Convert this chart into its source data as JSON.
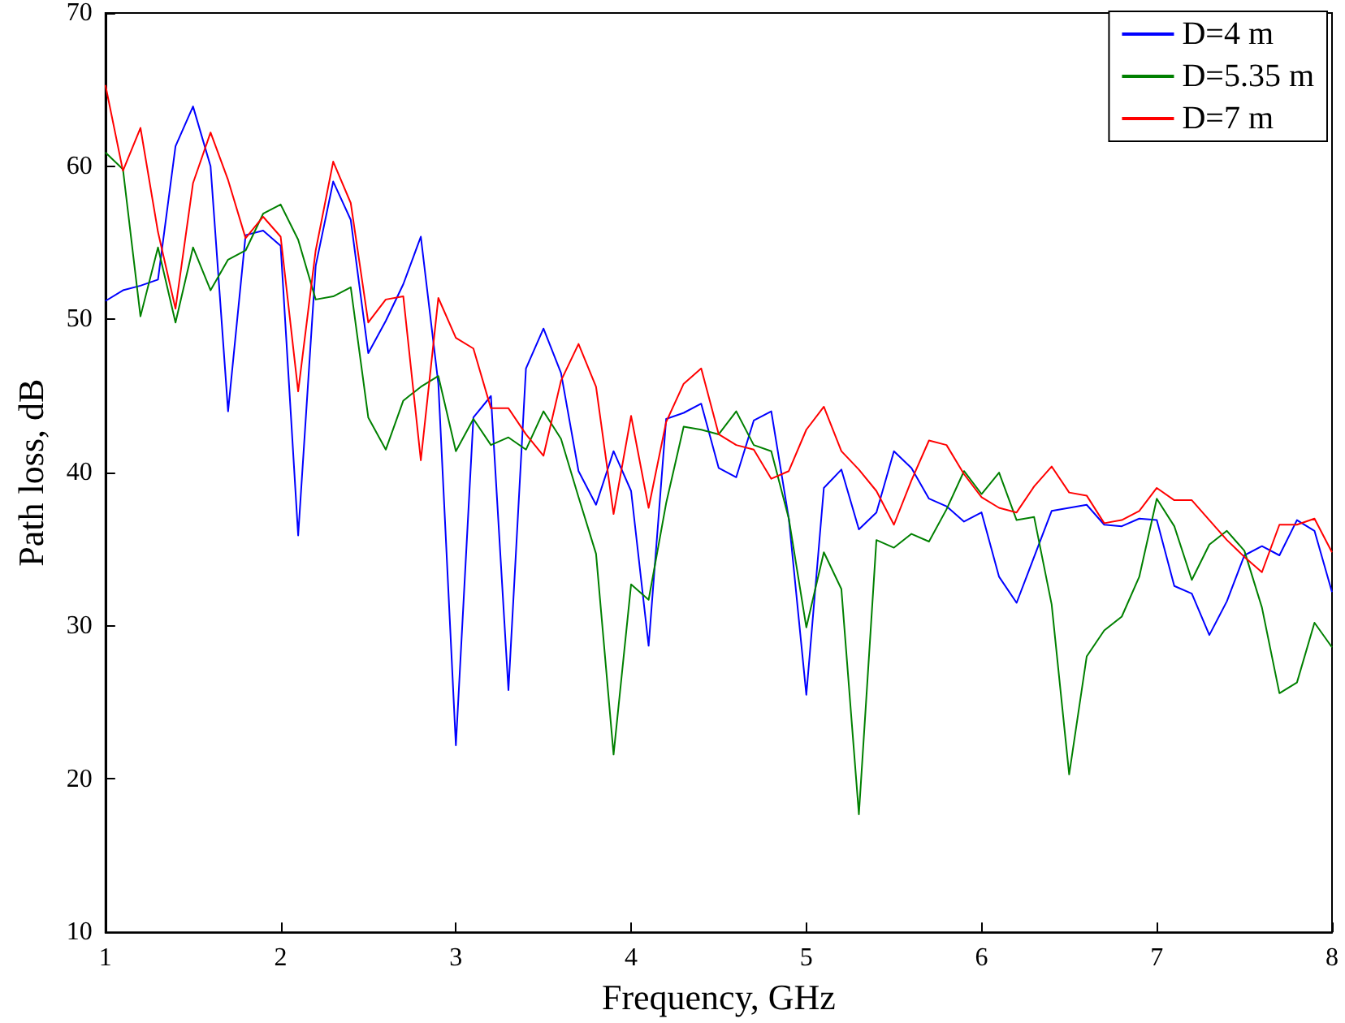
{
  "chart_data": {
    "type": "line",
    "xlabel": "Frequency, GHz",
    "ylabel": "Path loss, dB",
    "x": [
      1.0,
      1.1,
      1.2,
      1.3,
      1.4,
      1.5,
      1.6,
      1.7,
      1.8,
      1.9,
      2.0,
      2.1,
      2.2,
      2.3,
      2.4,
      2.5,
      2.6,
      2.7,
      2.8,
      2.9,
      3.0,
      3.1,
      3.2,
      3.3,
      3.4,
      3.5,
      3.6,
      3.7,
      3.8,
      3.9,
      4.0,
      4.1,
      4.2,
      4.3,
      4.4,
      4.5,
      4.6,
      4.7,
      4.8,
      4.9,
      5.0,
      5.1,
      5.2,
      5.3,
      5.4,
      5.5,
      5.6,
      5.7,
      5.8,
      5.9,
      6.0,
      6.1,
      6.2,
      6.3,
      6.4,
      6.5,
      6.6,
      6.7,
      6.8,
      6.9,
      7.0,
      7.1,
      7.2,
      7.3,
      7.4,
      7.5,
      7.6,
      7.7,
      7.8,
      7.9,
      8.0
    ],
    "series": [
      {
        "name": "D=4 m",
        "color": "#0000ff",
        "values": [
          51.2,
          51.9,
          52.2,
          52.6,
          61.3,
          63.9,
          60.0,
          44.0,
          55.5,
          55.8,
          54.8,
          35.9,
          53.5,
          59.0,
          56.5,
          47.8,
          49.9,
          52.3,
          55.4,
          45.8,
          22.2,
          43.6,
          45.0,
          25.8,
          46.8,
          49.4,
          46.5,
          40.1,
          37.9,
          41.4,
          38.8,
          28.7,
          43.5,
          43.9,
          44.5,
          40.3,
          39.7,
          43.4,
          44.0,
          37.0,
          25.5,
          39.0,
          40.2,
          36.3,
          37.4,
          41.4,
          40.3,
          38.3,
          37.8,
          36.8,
          37.4,
          33.2,
          31.5,
          34.5,
          37.5,
          37.7,
          37.9,
          36.6,
          36.5,
          37.0,
          36.9,
          32.6,
          32.1,
          29.4,
          31.6,
          34.6,
          35.2,
          34.6,
          36.9,
          36.2,
          32.2
        ]
      },
      {
        "name": "D=5.35 m",
        "color": "#008000",
        "values": [
          60.9,
          59.8,
          50.2,
          54.7,
          49.8,
          54.7,
          51.9,
          53.9,
          54.5,
          56.9,
          57.5,
          55.2,
          51.3,
          51.5,
          52.1,
          43.6,
          41.5,
          44.7,
          45.6,
          46.3,
          41.4,
          43.5,
          41.8,
          42.3,
          41.5,
          44.0,
          42.2,
          38.4,
          34.7,
          21.6,
          32.7,
          31.7,
          38.0,
          43.0,
          42.8,
          42.5,
          44.0,
          41.8,
          41.4,
          37.0,
          29.9,
          34.8,
          32.4,
          17.7,
          35.6,
          35.1,
          36.0,
          35.5,
          37.6,
          40.1,
          38.6,
          40.0,
          36.9,
          37.1,
          31.4,
          20.3,
          28.0,
          29.7,
          30.6,
          33.2,
          38.3,
          36.5,
          33.0,
          35.3,
          36.2,
          34.9,
          31.2,
          25.6,
          26.3,
          30.2,
          28.6
        ]
      },
      {
        "name": "D=7 m",
        "color": "#ff0000",
        "values": [
          65.3,
          59.7,
          62.5,
          55.7,
          50.7,
          58.9,
          62.2,
          59.1,
          55.3,
          56.7,
          55.4,
          45.3,
          54.5,
          60.3,
          57.6,
          49.8,
          51.3,
          51.5,
          40.8,
          51.4,
          48.8,
          48.1,
          44.2,
          44.2,
          42.5,
          41.1,
          46.0,
          48.4,
          45.6,
          37.3,
          43.7,
          37.7,
          43.3,
          45.8,
          46.8,
          42.5,
          41.8,
          41.5,
          39.6,
          40.1,
          42.8,
          44.3,
          41.4,
          40.2,
          38.8,
          36.6,
          39.5,
          42.1,
          41.8,
          39.9,
          38.4,
          37.7,
          37.4,
          39.1,
          40.4,
          38.7,
          38.5,
          36.7,
          36.9,
          37.5,
          39.0,
          38.2,
          38.2,
          36.9,
          35.6,
          34.5,
          33.5,
          36.6,
          36.6,
          37.0,
          34.8
        ]
      }
    ],
    "xlim": [
      1,
      8
    ],
    "xticks": [
      1,
      2,
      3,
      4,
      5,
      6,
      7,
      8
    ],
    "ylim": [
      10,
      70
    ],
    "yticks": [
      10,
      20,
      30,
      40,
      50,
      60,
      70
    ],
    "grid": false,
    "legend": "top right",
    "marker": "none",
    "line_style": "solid"
  }
}
